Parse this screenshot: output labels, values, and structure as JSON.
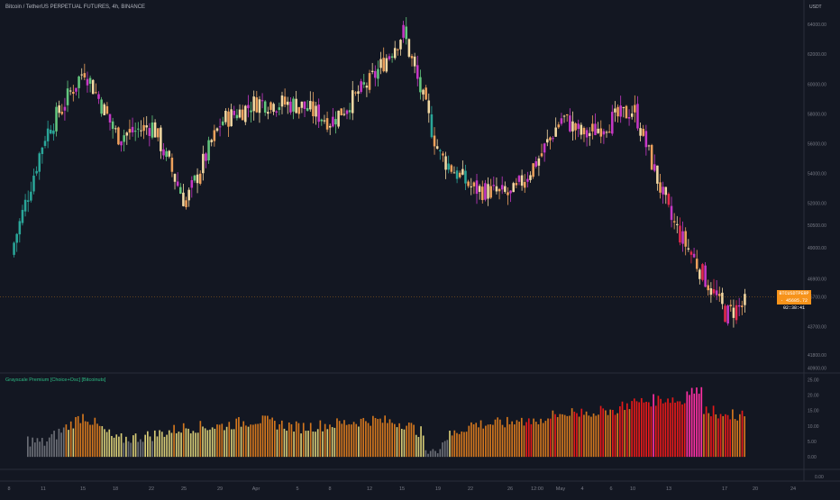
{
  "header": {
    "title": "Bitcoin / TetherUS PERPETUAL FUTURES, 4h, BINANCE"
  },
  "currency_label": "USDT",
  "indicator": {
    "label": "Grayscale Premium [Choice+Osc] [Bitcoinuts]"
  },
  "last_price_tag": {
    "symbol": "BTCUSDTPERP",
    "price": "45685.72",
    "countdown": "02:38:41"
  },
  "colors": {
    "background": "#131722",
    "text": "#b2b5be",
    "axis_text": "#787b86",
    "indicator_label": "#2dbd85",
    "price_tag": "#f7931a",
    "hist_gray": "#6b6e76",
    "hist_yellow": "#d6cb76",
    "hist_orange": "#d4771e",
    "hist_red": "#e81919",
    "hist_pink": "#ff2fa4",
    "candle_teal": "#2aa699",
    "candle_green": "#63c77e",
    "candle_cream": "#f3d9a3",
    "candle_orange": "#eea15c",
    "candle_magenta": "#c738c6",
    "candle_red": "#e6294d"
  },
  "chart_data": [
    {
      "type": "candlestick",
      "title": "Bitcoin / TetherUS PERPETUAL FUTURES, 4h, BINANCE",
      "y_axis_ticks": [
        "64000.00",
        "62000.00",
        "60000.00",
        "58000.00",
        "56000.00",
        "54000.00",
        "52000.00",
        "50500.00",
        "49000.00",
        "46900.00",
        "45700.00",
        "43700.00",
        "41800.00",
        "40900.00"
      ],
      "x_axis_ticks": [
        "8",
        "11",
        "15",
        "18",
        "22",
        "25",
        "29",
        "Apr",
        "5",
        "8",
        "12",
        "15",
        "19",
        "22",
        "26",
        "12:00",
        "May",
        "4",
        "6",
        "10",
        "13",
        "17",
        "20",
        "24"
      ],
      "last_price": 45685.72,
      "approx_close_path": [
        {
          "x": "8",
          "close": 48500
        },
        {
          "x": "11",
          "close": 56500
        },
        {
          "x": "15",
          "close": 61000
        },
        {
          "x": "18",
          "close": 56500
        },
        {
          "x": "22",
          "close": 57200
        },
        {
          "x": "25",
          "close": 52000
        },
        {
          "x": "29",
          "close": 57500
        },
        {
          "x": "Apr",
          "close": 58800
        },
        {
          "x": "5",
          "close": 58600
        },
        {
          "x": "8",
          "close": 57500
        },
        {
          "x": "12",
          "close": 60200
        },
        {
          "x": "15",
          "close": 63500
        },
        {
          "x": "19",
          "close": 55200
        },
        {
          "x": "22",
          "close": 53000
        },
        {
          "x": "26",
          "close": 52500
        },
        {
          "x": "12:00",
          "close": 55000
        },
        {
          "x": "May",
          "close": 57800
        },
        {
          "x": "4",
          "close": 56500
        },
        {
          "x": "6",
          "close": 57600
        },
        {
          "x": "10",
          "close": 58300
        },
        {
          "x": "13",
          "close": 51000
        },
        {
          "x": "17",
          "close": 44500
        },
        {
          "x": "20",
          "close": 45700
        }
      ]
    },
    {
      "type": "bar",
      "title": "Grayscale Premium [Choice+Osc] [Bitcoinuts]",
      "y_axis_ticks": [
        "25.00",
        "20.00",
        "15.00",
        "10.00",
        "5.00",
        "0.00"
      ],
      "bottom_value": "0.00",
      "color_legend_levels": [
        "gray",
        "yellow",
        "orange",
        "red",
        "pink"
      ],
      "approx_values": [
        {
          "x": "8",
          "value": 6.5
        },
        {
          "x": "11",
          "value": 4.5
        },
        {
          "x": "15",
          "value": 13.5
        },
        {
          "x": "18",
          "value": 5.5
        },
        {
          "x": "22",
          "value": 7.0
        },
        {
          "x": "25",
          "value": 9.5
        },
        {
          "x": "29",
          "value": 10.0
        },
        {
          "x": "Apr",
          "value": 12.0
        },
        {
          "x": "5",
          "value": 9.5
        },
        {
          "x": "8",
          "value": 10.5
        },
        {
          "x": "12",
          "value": 12.0
        },
        {
          "x": "15",
          "value": 11.0
        },
        {
          "x": "19",
          "value": 5.0
        },
        {
          "x": "22",
          "value": 10.5
        },
        {
          "x": "26",
          "value": 11.0
        },
        {
          "x": "12:00",
          "value": 12.0
        },
        {
          "x": "May",
          "value": 14.0
        },
        {
          "x": "4",
          "value": 14.5
        },
        {
          "x": "6",
          "value": 15.0
        },
        {
          "x": "10",
          "value": 17.5
        },
        {
          "x": "13",
          "value": 19.0
        },
        {
          "x": "17",
          "value": 13.5
        }
      ]
    }
  ]
}
